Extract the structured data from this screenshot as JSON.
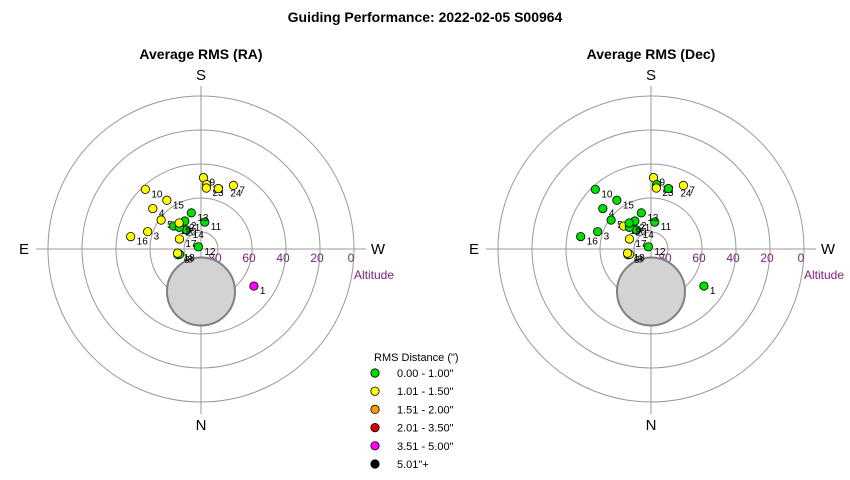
{
  "title": "Guiding Performance: 2022-02-05 S00964",
  "legend": {
    "title": "RMS Distance (\")",
    "entries": [
      {
        "label": "0.00 - 1.00\"",
        "color": "#00dd00"
      },
      {
        "label": "1.01 - 1.50\"",
        "color": "#ffff00"
      },
      {
        "label": "1.51 - 2.00\"",
        "color": "#ff9900"
      },
      {
        "label": "2.01 - 3.50\"",
        "color": "#dd0000"
      },
      {
        "label": "3.51 - 5.00\"",
        "color": "#ff00ff"
      },
      {
        "label": "5.01\"+",
        "color": "#000000"
      }
    ]
  },
  "chart_data": [
    {
      "type": "scatter",
      "title": "Average RMS (RA)",
      "directions": {
        "top": "S",
        "bottom": "N",
        "left": "E",
        "right": "W"
      },
      "altitude_ticks": [
        80,
        60,
        40,
        20,
        0
      ],
      "altitude_label": "Altitude",
      "ring_altitudes": [
        90,
        80,
        60,
        40,
        20,
        0
      ],
      "obstruction": {
        "label": "",
        "center_alt": 65,
        "center_dir": "N",
        "radius_deg": 20
      },
      "points": [
        {
          "label": "1",
          "alt": 52,
          "az": 305,
          "rms_class": 4
        },
        {
          "label": "2",
          "alt": 71,
          "az": 150,
          "rms_class": 0
        },
        {
          "label": "3",
          "alt": 57,
          "az": 108,
          "rms_class": 1
        },
        {
          "label": "4",
          "alt": 53,
          "az": 130,
          "rms_class": 1
        },
        {
          "label": "5",
          "alt": 61,
          "az": 126,
          "rms_class": 1
        },
        {
          "label": "6",
          "alt": 76,
          "az": 76,
          "rms_class": 1
        },
        {
          "label": "7",
          "alt": 48,
          "az": 207,
          "rms_class": 1
        },
        {
          "label": "8",
          "alt": 77,
          "az": 76,
          "rms_class": 0
        },
        {
          "label": "9",
          "alt": 48,
          "az": 182,
          "rms_class": 1
        },
        {
          "label": "10",
          "alt": 42,
          "az": 137,
          "rms_class": 1
        },
        {
          "label": "11",
          "alt": 74,
          "az": 188,
          "rms_class": 0
        },
        {
          "label": "12",
          "alt": 88,
          "az": 130,
          "rms_class": 0
        },
        {
          "label": "13",
          "alt": 68,
          "az": 165,
          "rms_class": 0
        },
        {
          "label": "14",
          "alt": 76,
          "az": 143,
          "rms_class": 0
        },
        {
          "label": "15",
          "alt": 55,
          "az": 145,
          "rms_class": 1
        },
        {
          "label": "16",
          "alt": 48,
          "az": 100,
          "rms_class": 1
        },
        {
          "label": "17",
          "alt": 76,
          "az": 115,
          "rms_class": 1
        },
        {
          "label": "18",
          "alt": 76,
          "az": 80,
          "rms_class": 1
        },
        {
          "label": "19",
          "alt": 69,
          "az": 130,
          "rms_class": 0
        },
        {
          "label": "20",
          "alt": 72,
          "az": 135,
          "rms_class": 0
        },
        {
          "label": "21",
          "alt": 70,
          "az": 140,
          "rms_class": 1
        },
        {
          "label": "22",
          "alt": 52,
          "az": 185,
          "rms_class": 1
        },
        {
          "label": "23",
          "alt": 54,
          "az": 185,
          "rms_class": 1
        },
        {
          "label": "24",
          "alt": 53,
          "az": 196,
          "rms_class": 1
        }
      ]
    },
    {
      "type": "scatter",
      "title": "Average RMS (Dec)",
      "directions": {
        "top": "S",
        "bottom": "N",
        "left": "E",
        "right": "W"
      },
      "altitude_ticks": [
        80,
        60,
        40,
        20,
        0
      ],
      "altitude_label": "Altitude",
      "ring_altitudes": [
        90,
        80,
        60,
        40,
        20,
        0
      ],
      "obstruction": {
        "label": "",
        "center_alt": 65,
        "center_dir": "N",
        "radius_deg": 20
      },
      "points": [
        {
          "label": "1",
          "alt": 52,
          "az": 305,
          "rms_class": 0
        },
        {
          "label": "2",
          "alt": 71,
          "az": 150,
          "rms_class": 0
        },
        {
          "label": "3",
          "alt": 57,
          "az": 108,
          "rms_class": 0
        },
        {
          "label": "4",
          "alt": 53,
          "az": 130,
          "rms_class": 0
        },
        {
          "label": "5",
          "alt": 61,
          "az": 126,
          "rms_class": 0
        },
        {
          "label": "6",
          "alt": 76,
          "az": 76,
          "rms_class": 1
        },
        {
          "label": "7",
          "alt": 48,
          "az": 207,
          "rms_class": 1
        },
        {
          "label": "8",
          "alt": 77,
          "az": 76,
          "rms_class": 1
        },
        {
          "label": "9",
          "alt": 48,
          "az": 182,
          "rms_class": 1
        },
        {
          "label": "10",
          "alt": 42,
          "az": 137,
          "rms_class": 0
        },
        {
          "label": "11",
          "alt": 74,
          "az": 188,
          "rms_class": 0
        },
        {
          "label": "12",
          "alt": 88,
          "az": 130,
          "rms_class": 0
        },
        {
          "label": "13",
          "alt": 68,
          "az": 165,
          "rms_class": 0
        },
        {
          "label": "14",
          "alt": 76,
          "az": 143,
          "rms_class": 0
        },
        {
          "label": "15",
          "alt": 55,
          "az": 145,
          "rms_class": 0
        },
        {
          "label": "16",
          "alt": 48,
          "az": 100,
          "rms_class": 0
        },
        {
          "label": "17",
          "alt": 76,
          "az": 115,
          "rms_class": 1
        },
        {
          "label": "18",
          "alt": 76,
          "az": 80,
          "rms_class": 1
        },
        {
          "label": "19",
          "alt": 69,
          "az": 130,
          "rms_class": 1
        },
        {
          "label": "20",
          "alt": 72,
          "az": 135,
          "rms_class": 0
        },
        {
          "label": "21",
          "alt": 70,
          "az": 140,
          "rms_class": 0
        },
        {
          "label": "22",
          "alt": 52,
          "az": 185,
          "rms_class": 0
        },
        {
          "label": "23",
          "alt": 54,
          "az": 185,
          "rms_class": 1
        },
        {
          "label": "24",
          "alt": 53,
          "az": 196,
          "rms_class": 0
        }
      ]
    }
  ]
}
